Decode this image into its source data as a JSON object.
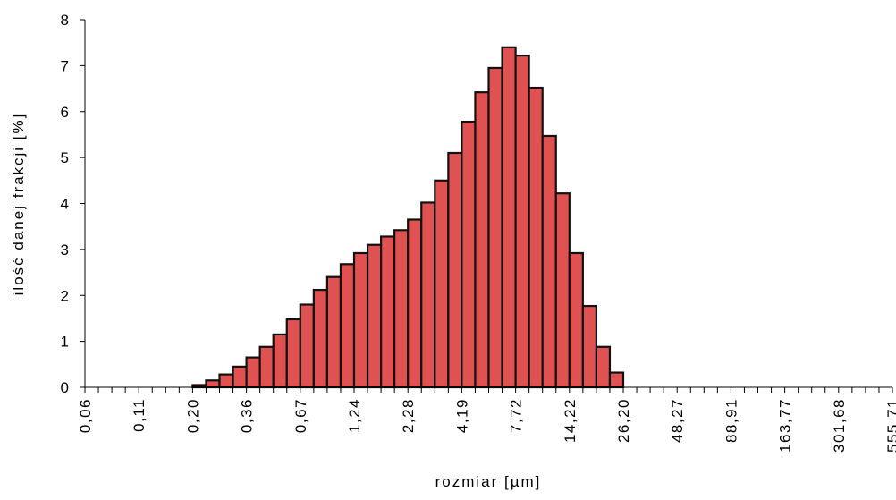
{
  "chart_data": {
    "type": "histogram",
    "x_label": "rozmiar [µm]",
    "y_label": "ilość danej frakcji [%]",
    "bins": [
      "0,06",
      null,
      null,
      null,
      "0,11",
      null,
      null,
      null,
      "0,20",
      null,
      null,
      null,
      "0,36",
      null,
      null,
      null,
      "0,67",
      null,
      null,
      null,
      "1,24",
      null,
      null,
      null,
      "2,28",
      null,
      null,
      null,
      "4,19",
      null,
      null,
      null,
      "7,72",
      null,
      null,
      null,
      "14,22",
      null,
      null,
      null,
      "26,20",
      null,
      null,
      null,
      "48,27",
      null,
      null,
      null,
      "88,91",
      null,
      null,
      null,
      "163,77",
      null,
      null,
      null,
      "301,68",
      null,
      null,
      null,
      "555,71"
    ],
    "values": [
      0,
      0,
      0,
      0,
      0,
      0,
      0,
      0,
      0.05,
      0.15,
      0.28,
      0.45,
      0.65,
      0.88,
      1.15,
      1.48,
      1.8,
      2.12,
      2.4,
      2.68,
      2.92,
      3.1,
      3.28,
      3.42,
      3.65,
      4.02,
      4.5,
      5.1,
      5.78,
      6.42,
      6.95,
      7.4,
      7.22,
      6.52,
      5.47,
      4.22,
      2.92,
      1.77,
      0.88,
      0.32,
      0,
      0,
      0,
      0,
      0,
      0,
      0,
      0,
      0,
      0,
      0,
      0,
      0,
      0,
      0,
      0,
      0,
      0,
      0,
      0
    ],
    "color": "#e05252",
    "ylim": [
      0,
      8
    ],
    "yticks": [
      0,
      1,
      2,
      3,
      4,
      5,
      6,
      7,
      8
    ]
  }
}
